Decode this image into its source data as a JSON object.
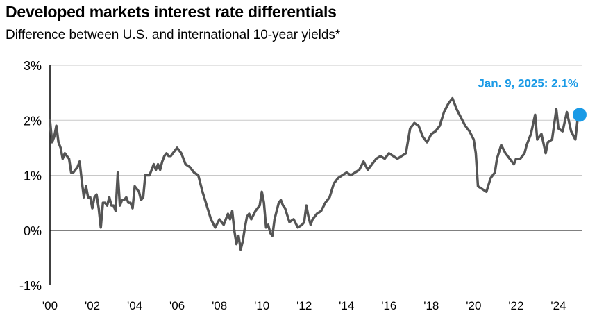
{
  "chart_data": {
    "type": "line",
    "title": "Developed markets interest rate differentials",
    "subtitle": "Difference between U.S. and international 10-year yields*",
    "xlabel": "",
    "ylabel": "",
    "xlim": [
      2000,
      2025.1
    ],
    "ylim": [
      -1,
      3
    ],
    "y_ticks": [
      {
        "value": 3,
        "label": "3%"
      },
      {
        "value": 2,
        "label": "2%"
      },
      {
        "value": 1,
        "label": "1%"
      },
      {
        "value": 0,
        "label": "0%"
      },
      {
        "value": -1,
        "label": "-1%"
      }
    ],
    "x_ticks": [
      {
        "value": 2000,
        "label": "'00"
      },
      {
        "value": 2002,
        "label": "'02"
      },
      {
        "value": 2004,
        "label": "'04"
      },
      {
        "value": 2006,
        "label": "'06"
      },
      {
        "value": 2008,
        "label": "'08"
      },
      {
        "value": 2010,
        "label": "'10"
      },
      {
        "value": 2012,
        "label": "'12"
      },
      {
        "value": 2014,
        "label": "'14"
      },
      {
        "value": 2016,
        "label": "'16"
      },
      {
        "value": 2018,
        "label": "'18"
      },
      {
        "value": 2020,
        "label": "'20"
      },
      {
        "value": 2022,
        "label": "'22"
      },
      {
        "value": 2024,
        "label": "'24"
      }
    ],
    "grid": "horizontal",
    "series": [
      {
        "name": "U.S. minus international 10-year yield",
        "color": "#555555",
        "x": [
          2000.0,
          2000.1,
          2000.2,
          2000.3,
          2000.4,
          2000.5,
          2000.6,
          2000.7,
          2000.8,
          2000.9,
          2001.0,
          2001.1,
          2001.2,
          2001.3,
          2001.4,
          2001.5,
          2001.6,
          2001.7,
          2001.8,
          2001.9,
          2002.0,
          2002.1,
          2002.2,
          2002.3,
          2002.4,
          2002.5,
          2002.6,
          2002.7,
          2002.8,
          2002.9,
          2003.0,
          2003.1,
          2003.2,
          2003.3,
          2003.4,
          2003.5,
          2003.6,
          2003.7,
          2003.8,
          2003.9,
          2004.0,
          2004.1,
          2004.2,
          2004.3,
          2004.4,
          2004.5,
          2004.7,
          2004.9,
          2005.0,
          2005.1,
          2005.2,
          2005.3,
          2005.4,
          2005.5,
          2005.6,
          2005.7,
          2005.8,
          2005.9,
          2006.0,
          2006.2,
          2006.4,
          2006.6,
          2006.8,
          2007.0,
          2007.2,
          2007.4,
          2007.6,
          2007.8,
          2008.0,
          2008.2,
          2008.4,
          2008.5,
          2008.6,
          2008.7,
          2008.8,
          2008.9,
          2009.0,
          2009.1,
          2009.2,
          2009.3,
          2009.4,
          2009.5,
          2009.7,
          2009.9,
          2010.0,
          2010.1,
          2010.2,
          2010.3,
          2010.4,
          2010.5,
          2010.6,
          2010.7,
          2010.8,
          2010.9,
          2011.0,
          2011.1,
          2011.3,
          2011.5,
          2011.7,
          2011.9,
          2012.0,
          2012.1,
          2012.2,
          2012.3,
          2012.4,
          2012.6,
          2012.8,
          2013.0,
          2013.2,
          2013.4,
          2013.6,
          2013.8,
          2014.0,
          2014.2,
          2014.4,
          2014.6,
          2014.8,
          2015.0,
          2015.2,
          2015.4,
          2015.6,
          2015.8,
          2016.0,
          2016.2,
          2016.4,
          2016.6,
          2016.8,
          2017.0,
          2017.2,
          2017.4,
          2017.6,
          2017.8,
          2018.0,
          2018.2,
          2018.4,
          2018.6,
          2018.8,
          2019.0,
          2019.2,
          2019.4,
          2019.6,
          2019.8,
          2020.0,
          2020.1,
          2020.2,
          2020.4,
          2020.6,
          2020.8,
          2021.0,
          2021.1,
          2021.3,
          2021.5,
          2021.7,
          2021.9,
          2022.0,
          2022.2,
          2022.4,
          2022.5,
          2022.7,
          2022.9,
          2023.0,
          2023.2,
          2023.4,
          2023.5,
          2023.7,
          2023.9,
          2024.0,
          2024.2,
          2024.4,
          2024.6,
          2024.8,
          2024.9,
          2025.0
        ],
        "values": [
          2.0,
          1.6,
          1.7,
          1.9,
          1.6,
          1.5,
          1.3,
          1.4,
          1.35,
          1.3,
          1.05,
          1.05,
          1.1,
          1.15,
          1.25,
          0.9,
          0.6,
          0.8,
          0.6,
          0.6,
          0.4,
          0.6,
          0.65,
          0.4,
          0.05,
          0.5,
          0.5,
          0.45,
          0.6,
          0.45,
          0.45,
          0.35,
          1.05,
          0.45,
          0.55,
          0.55,
          0.6,
          0.5,
          0.5,
          0.4,
          0.8,
          0.75,
          0.7,
          0.55,
          0.6,
          1.0,
          1.0,
          1.2,
          1.1,
          1.2,
          1.1,
          1.25,
          1.35,
          1.4,
          1.35,
          1.35,
          1.4,
          1.45,
          1.5,
          1.4,
          1.2,
          1.15,
          1.05,
          1.0,
          0.7,
          0.45,
          0.2,
          0.05,
          0.2,
          0.1,
          0.3,
          0.2,
          0.35,
          0.0,
          -0.25,
          -0.1,
          -0.35,
          -0.2,
          0.05,
          0.25,
          0.3,
          0.2,
          0.35,
          0.45,
          0.7,
          0.5,
          0.05,
          0.1,
          -0.05,
          -0.1,
          0.2,
          0.35,
          0.5,
          0.55,
          0.45,
          0.4,
          0.15,
          0.2,
          0.05,
          0.1,
          0.15,
          0.45,
          0.25,
          0.1,
          0.2,
          0.3,
          0.35,
          0.5,
          0.6,
          0.85,
          0.95,
          1.0,
          1.05,
          1.0,
          1.05,
          1.1,
          1.25,
          1.1,
          1.2,
          1.3,
          1.35,
          1.3,
          1.4,
          1.35,
          1.3,
          1.35,
          1.4,
          1.85,
          1.95,
          1.9,
          1.7,
          1.6,
          1.75,
          1.8,
          1.9,
          2.15,
          2.3,
          2.4,
          2.2,
          2.05,
          1.9,
          1.8,
          1.65,
          1.4,
          0.8,
          0.75,
          0.7,
          0.95,
          1.05,
          1.3,
          1.55,
          1.4,
          1.3,
          1.2,
          1.3,
          1.3,
          1.4,
          1.55,
          1.75,
          2.1,
          1.65,
          1.75,
          1.4,
          1.6,
          1.65,
          2.2,
          1.85,
          1.8,
          2.15,
          1.8,
          1.65,
          2.0,
          2.1
        ]
      }
    ],
    "annotations": [
      {
        "text": "Jan. 9, 2025: 2.1%",
        "x": 2025.0,
        "y": 2.1,
        "marker_color": "#1a9ae6"
      }
    ]
  },
  "colors": {
    "line": "#555555",
    "highlight": "#1a9ae6",
    "grid": "#c8c8c8",
    "axis": "#000000"
  }
}
